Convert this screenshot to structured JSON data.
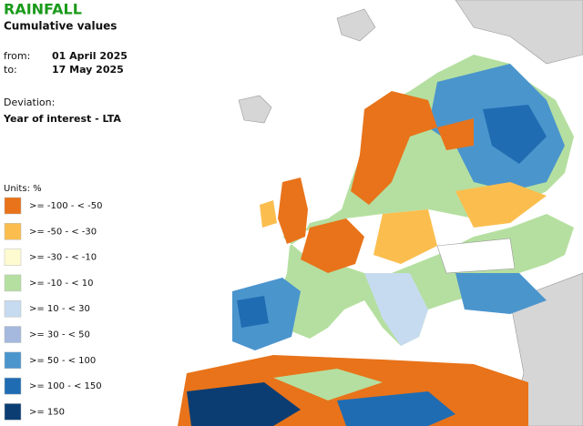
{
  "header": {
    "title": "RAINFALL",
    "subtitle": "Cumulative values"
  },
  "period": {
    "from_label": "from:",
    "from": "01 April 2025",
    "to_label": "to:",
    "to": "17 May 2025"
  },
  "deviation": {
    "label": "Deviation:",
    "value": "Year of interest - LTA"
  },
  "legend": {
    "title": "Units: %",
    "items": [
      {
        "label": ">= -100 - < -50",
        "color": "#e8731a"
      },
      {
        "label": ">= -50 - < -30",
        "color": "#fbbe4e"
      },
      {
        "label": ">= -30 - < -10",
        "color": "#fffbd0"
      },
      {
        "label": ">= -10 - < 10",
        "color": "#b5dfa0"
      },
      {
        "label": ">= 10 - < 30",
        "color": "#c6dbef"
      },
      {
        "label": ">= 30 - < 50",
        "color": "#a4b9dd"
      },
      {
        "label": ">= 50 - < 100",
        "color": "#4b95cd"
      },
      {
        "label": ">= 100 - < 150",
        "color": "#1f6cb3"
      },
      {
        "label": ">= 150",
        "color": "#0b3d73"
      }
    ]
  }
}
